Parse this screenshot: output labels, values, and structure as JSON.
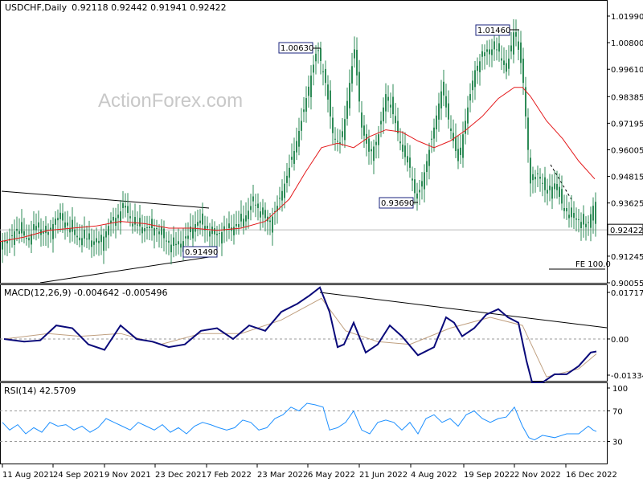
{
  "header": {
    "symbol": "USDCHF,Daily",
    "ohlc": "0.92118 0.92442 0.91941 0.92422"
  },
  "watermark": "ActionForex.com",
  "macd_label": "MACD(12,26,9) -0.004642 -0.005496",
  "rsi_label": "RSI(14) 42.5709",
  "fe_label": "FE 100.0",
  "colors": {
    "candle": "#2e8b57",
    "ma": "#e41a1c",
    "macd": "#0a0a7a",
    "macd_signal": "#c0a080",
    "rsi": "#1e90ff",
    "grid_dash": "#999999",
    "frame": "#000000"
  },
  "chart_data": [
    {
      "type": "candlestick",
      "title": "USDCHF,Daily",
      "x": [
        "11 Aug 2021",
        "24 Sep 2021",
        "9 Nov 2021",
        "23 Dec 2021",
        "7 Feb 2022",
        "23 Mar 2022",
        "6 May 2022",
        "21 Jun 2022",
        "4 Aug 2022",
        "19 Sep 2022",
        "2 Nov 2022",
        "16 Dec 2022"
      ],
      "ylim": [
        0.90055,
        1.0199
      ],
      "y_ticks": [
        "1.01990",
        "1.00800",
        "0.99610",
        "0.98385",
        "0.97195",
        "0.96005",
        "0.94815",
        "0.93625",
        "0.92435",
        "0.91245",
        "0.90055"
      ],
      "current_price": "0.92422",
      "annotations": [
        "1.00630",
        "1.01460",
        "0.93690",
        "0.91490"
      ],
      "series": [
        {
          "name": "",
          "kind": "close_path",
          "values": [
            [
              0,
              0.92
            ],
            [
              10,
              0.918
            ],
            [
              20,
              0.925
            ],
            [
              35,
              0.92
            ],
            [
              45,
              0.926
            ],
            [
              60,
              0.922
            ],
            [
              70,
              0.93
            ],
            [
              80,
              0.928
            ],
            [
              95,
              0.921
            ],
            [
              110,
              0.92
            ],
            [
              125,
              0.918
            ],
            [
              135,
              0.926
            ],
            [
              145,
              0.93
            ],
            [
              155,
              0.935
            ],
            [
              165,
              0.927
            ],
            [
              180,
              0.925
            ],
            [
              195,
              0.925
            ],
            [
              205,
              0.92
            ],
            [
              215,
              0.917
            ],
            [
              225,
              0.918
            ],
            [
              235,
              0.922
            ],
            [
              245,
              0.928
            ],
            [
              255,
              0.926
            ],
            [
              265,
              0.922
            ],
            [
              275,
              0.923
            ],
            [
              285,
              0.925
            ],
            [
              295,
              0.926
            ],
            [
              305,
              0.93
            ],
            [
              315,
              0.937
            ],
            [
              325,
              0.932
            ],
            [
              335,
              0.927
            ],
            [
              345,
              0.935
            ],
            [
              355,
              0.946
            ],
            [
              365,
              0.958
            ],
            [
              375,
              0.973
            ],
            [
              385,
              0.99
            ],
            [
              395,
              1.0063
            ],
            [
              405,
              0.99
            ],
            [
              415,
              0.965
            ],
            [
              425,
              0.963
            ],
            [
              435,
              0.99
            ],
            [
              441,
              1.005
            ],
            [
              450,
              0.97
            ],
            [
              460,
              0.958
            ],
            [
              470,
              0.965
            ],
            [
              480,
              0.985
            ],
            [
              490,
              0.975
            ],
            [
              500,
              0.96
            ],
            [
              510,
              0.952
            ],
            [
              518,
              0.9369
            ],
            [
              528,
              0.95
            ],
            [
              540,
              0.97
            ],
            [
              550,
              0.988
            ],
            [
              560,
              0.97
            ],
            [
              570,
              0.955
            ],
            [
              580,
              0.975
            ],
            [
              590,
              0.995
            ],
            [
              605,
              1.005
            ],
            [
              620,
              1.005
            ],
            [
              630,
              0.995
            ],
            [
              640,
              1.0146
            ],
            [
              650,
              0.995
            ],
            [
              660,
              0.945
            ],
            [
              670,
              0.95
            ],
            [
              680,
              0.94
            ],
            [
              690,
              0.945
            ],
            [
              700,
              0.935
            ],
            [
              710,
              0.93
            ],
            [
              720,
              0.929
            ],
            [
              730,
              0.925
            ],
            [
              738,
              0.935
            ],
            [
              742,
              0.9242
            ]
          ]
        },
        {
          "name": "",
          "kind": "ma",
          "values": [
            [
              0,
              0.919
            ],
            [
              30,
              0.921
            ],
            [
              60,
              0.924
            ],
            [
              90,
              0.925
            ],
            [
              120,
              0.926
            ],
            [
              150,
              0.928
            ],
            [
              180,
              0.927
            ],
            [
              210,
              0.925
            ],
            [
              240,
              0.925
            ],
            [
              270,
              0.924
            ],
            [
              300,
              0.925
            ],
            [
              330,
              0.928
            ],
            [
              360,
              0.938
            ],
            [
              380,
              0.95
            ],
            [
              400,
              0.961
            ],
            [
              420,
              0.963
            ],
            [
              440,
              0.961
            ],
            [
              460,
              0.966
            ],
            [
              480,
              0.969
            ],
            [
              500,
              0.968
            ],
            [
              520,
              0.964
            ],
            [
              540,
              0.961
            ],
            [
              560,
              0.964
            ],
            [
              580,
              0.969
            ],
            [
              600,
              0.975
            ],
            [
              620,
              0.983
            ],
            [
              640,
              0.988
            ],
            [
              650,
              0.988
            ],
            [
              660,
              0.984
            ],
            [
              680,
              0.973
            ],
            [
              700,
              0.965
            ],
            [
              720,
              0.955
            ],
            [
              740,
              0.947
            ]
          ]
        }
      ]
    },
    {
      "type": "line",
      "title": "MACD(12,26,9) -0.004642 -0.005496",
      "ylim": [
        -0.01334,
        0.01717
      ],
      "y_ticks": [
        "0.017176",
        "0.00",
        "-0.01334"
      ],
      "series": [
        {
          "name": "",
          "kind": "macd",
          "values": [
            [
              5,
              0.0
            ],
            [
              30,
              -0.001
            ],
            [
              50,
              -0.0005
            ],
            [
              70,
              0.005
            ],
            [
              90,
              0.004
            ],
            [
              110,
              -0.002
            ],
            [
              130,
              -0.004
            ],
            [
              150,
              0.005
            ],
            [
              170,
              0.0
            ],
            [
              190,
              -0.001
            ],
            [
              210,
              -0.003
            ],
            [
              230,
              -0.002
            ],
            [
              250,
              0.003
            ],
            [
              270,
              0.004
            ],
            [
              290,
              0.0
            ],
            [
              310,
              0.005
            ],
            [
              330,
              0.003
            ],
            [
              350,
              0.01
            ],
            [
              370,
              0.013
            ],
            [
              385,
              0.016
            ],
            [
              398,
              0.019
            ],
            [
              410,
              0.01
            ],
            [
              420,
              -0.003
            ],
            [
              428,
              -0.002
            ],
            [
              440,
              0.006
            ],
            [
              455,
              -0.005
            ],
            [
              470,
              -0.002
            ],
            [
              485,
              0.005
            ],
            [
              500,
              0.001
            ],
            [
              520,
              -0.006
            ],
            [
              540,
              -0.003
            ],
            [
              555,
              0.008
            ],
            [
              565,
              0.006
            ],
            [
              575,
              0.001
            ],
            [
              590,
              0.004
            ],
            [
              605,
              0.009
            ],
            [
              620,
              0.011
            ],
            [
              632,
              0.008
            ],
            [
              645,
              0.006
            ],
            [
              655,
              -0.008
            ],
            [
              662,
              -0.016
            ],
            [
              675,
              -0.016
            ],
            [
              690,
              -0.013
            ],
            [
              705,
              -0.013
            ],
            [
              720,
              -0.01
            ],
            [
              735,
              -0.005
            ],
            [
              742,
              -0.0046
            ]
          ]
        },
        {
          "name": "",
          "kind": "signal",
          "values": [
            [
              5,
              0.0
            ],
            [
              60,
              0.002
            ],
            [
              100,
              0.001
            ],
            [
              150,
              0.002
            ],
            [
              200,
              -0.002
            ],
            [
              250,
              0.002
            ],
            [
              300,
              0.002
            ],
            [
              350,
              0.007
            ],
            [
              400,
              0.015
            ],
            [
              430,
              0.003
            ],
            [
              470,
              -0.001
            ],
            [
              510,
              -0.002
            ],
            [
              560,
              0.004
            ],
            [
              610,
              0.008
            ],
            [
              650,
              0.005
            ],
            [
              680,
              -0.014
            ],
            [
              720,
              -0.011
            ],
            [
              742,
              -0.0055
            ]
          ]
        }
      ]
    },
    {
      "type": "line",
      "title": "RSI(14) 42.5709",
      "ylim": [
        0,
        100
      ],
      "y_ticks": [
        "100",
        "70",
        "30",
        "0"
      ],
      "series": [
        {
          "name": "",
          "kind": "rsi",
          "values": [
            [
              3,
              55
            ],
            [
              12,
              45
            ],
            [
              22,
              52
            ],
            [
              32,
              40
            ],
            [
              42,
              48
            ],
            [
              52,
              42
            ],
            [
              62,
              55
            ],
            [
              72,
              50
            ],
            [
              82,
              52
            ],
            [
              92,
              45
            ],
            [
              102,
              50
            ],
            [
              112,
              42
            ],
            [
              122,
              48
            ],
            [
              132,
              60
            ],
            [
              142,
              55
            ],
            [
              152,
              50
            ],
            [
              162,
              45
            ],
            [
              172,
              55
            ],
            [
              182,
              50
            ],
            [
              192,
              45
            ],
            [
              202,
              52
            ],
            [
              212,
              42
            ],
            [
              222,
              48
            ],
            [
              232,
              40
            ],
            [
              242,
              50
            ],
            [
              252,
              55
            ],
            [
              262,
              52
            ],
            [
              272,
              48
            ],
            [
              282,
              45
            ],
            [
              292,
              48
            ],
            [
              302,
              58
            ],
            [
              312,
              55
            ],
            [
              322,
              45
            ],
            [
              332,
              48
            ],
            [
              342,
              60
            ],
            [
              352,
              65
            ],
            [
              362,
              75
            ],
            [
              372,
              70
            ],
            [
              382,
              80
            ],
            [
              392,
              78
            ],
            [
              402,
              75
            ],
            [
              410,
              45
            ],
            [
              420,
              48
            ],
            [
              430,
              55
            ],
            [
              440,
              70
            ],
            [
              450,
              45
            ],
            [
              460,
              40
            ],
            [
              470,
              55
            ],
            [
              480,
              58
            ],
            [
              490,
              55
            ],
            [
              500,
              45
            ],
            [
              510,
              55
            ],
            [
              520,
              40
            ],
            [
              530,
              60
            ],
            [
              540,
              65
            ],
            [
              550,
              55
            ],
            [
              560,
              60
            ],
            [
              570,
              50
            ],
            [
              580,
              65
            ],
            [
              590,
              70
            ],
            [
              600,
              60
            ],
            [
              610,
              55
            ],
            [
              620,
              60
            ],
            [
              630,
              62
            ],
            [
              640,
              75
            ],
            [
              650,
              50
            ],
            [
              658,
              35
            ],
            [
              665,
              32
            ],
            [
              675,
              38
            ],
            [
              690,
              35
            ],
            [
              705,
              40
            ],
            [
              720,
              40
            ],
            [
              732,
              50
            ],
            [
              738,
              45
            ],
            [
              742,
              43
            ]
          ]
        }
      ]
    }
  ],
  "x_labels": [
    "11 Aug 2021",
    "24 Sep 2021",
    "9 Nov 2021",
    "23 Dec 2021",
    "7 Feb 2022",
    "23 Mar 2022",
    "6 May 2022",
    "21 Jun 2022",
    "4 Aug 2022",
    "19 Sep 2022",
    "2 Nov 2022",
    "16 Dec 2022"
  ]
}
